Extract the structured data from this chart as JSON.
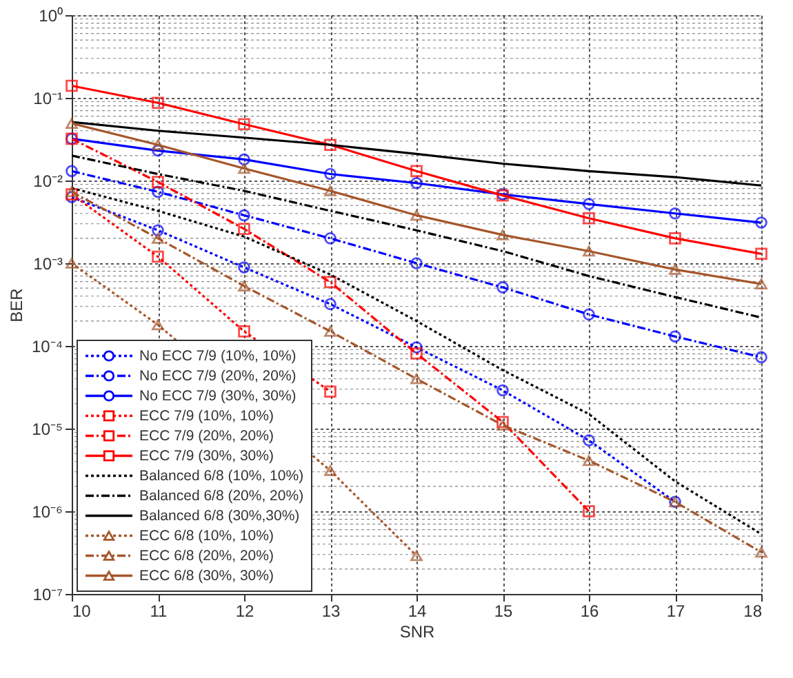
{
  "chart_data": {
    "type": "line",
    "xlabel": "SNR",
    "ylabel": "BER",
    "log": "y",
    "xlim": [
      10,
      18
    ],
    "xticks": [
      10,
      11,
      12,
      13,
      14,
      15,
      16,
      17,
      18
    ],
    "ylim": [
      1e-07,
      1
    ],
    "yticks": [
      {
        "value": 1e-07,
        "label": "10⁻⁷"
      },
      {
        "value": 1e-06,
        "label": "10⁻⁶"
      },
      {
        "value": 1e-05,
        "label": "10⁻⁵"
      },
      {
        "value": 0.0001,
        "label": "10⁻⁴"
      },
      {
        "value": 0.001,
        "label": "10⁻³"
      },
      {
        "value": 0.01,
        "label": "10⁻²"
      },
      {
        "value": 0.1,
        "label": "10⁻¹"
      },
      {
        "value": 1,
        "label": "10⁰"
      }
    ],
    "grid": true,
    "legend": "bottom left",
    "series": [
      {
        "name": "No ECC 7/9 (10%, 10%)",
        "color": "#0000ff",
        "marker": "circle",
        "line_style": "dotted",
        "x": [
          10,
          11,
          12,
          13,
          14,
          15,
          16,
          17
        ],
        "values": [
          0.0063,
          0.0025,
          0.00089,
          0.00032,
          9.6e-05,
          2.9e-05,
          7.2e-06,
          1.3e-06
        ]
      },
      {
        "name": "No ECC 7/9 (20%, 20%)",
        "color": "#0000ff",
        "marker": "circle",
        "line_style": "dashed",
        "x": [
          10,
          11,
          12,
          13,
          14,
          15,
          16,
          17,
          18
        ],
        "values": [
          0.013,
          0.0073,
          0.0038,
          0.002,
          0.001,
          0.00051,
          0.00024,
          0.00013,
          7.3e-05
        ]
      },
      {
        "name": "No ECC 7/9 (30%, 30%)",
        "color": "#0000ff",
        "marker": "circle",
        "line_style": "solid",
        "x": [
          10,
          11,
          12,
          13,
          14,
          15,
          16,
          17,
          18
        ],
        "values": [
          0.032,
          0.023,
          0.018,
          0.012,
          0.0093,
          0.0068,
          0.0052,
          0.004,
          0.0031
        ]
      },
      {
        "name": "ECC 7/9 (10%, 10%)",
        "color": "#ff0000",
        "marker": "square",
        "line_style": "dotted",
        "x": [
          10,
          11,
          12,
          13
        ],
        "values": [
          0.0068,
          0.0012,
          0.00015,
          2.8e-05
        ]
      },
      {
        "name": "ECC 7/9 (20%, 20%)",
        "color": "#ff0000",
        "marker": "square",
        "line_style": "dashed",
        "x": [
          10,
          11,
          12,
          13,
          14,
          15,
          16
        ],
        "values": [
          0.032,
          0.0096,
          0.0026,
          0.00059,
          8.1e-05,
          1.2e-05,
          1e-06
        ]
      },
      {
        "name": "ECC 7/9 (30%, 30%)",
        "color": "#ff0000",
        "marker": "square",
        "line_style": "solid",
        "x": [
          10,
          11,
          12,
          13,
          14,
          15,
          16,
          17,
          18
        ],
        "values": [
          0.14,
          0.087,
          0.048,
          0.027,
          0.013,
          0.0066,
          0.0035,
          0.002,
          0.0013
        ]
      },
      {
        "name": "Balanced 6/8 (10%, 10%)",
        "color": "#000000",
        "marker": "none",
        "line_style": "dotted",
        "x": [
          10,
          11,
          12,
          13,
          14,
          15,
          16,
          17,
          18
        ],
        "values": [
          0.0081,
          0.0043,
          0.0021,
          0.00073,
          0.0002,
          5.1e-05,
          1.5e-05,
          2.3e-06,
          5.3e-07
        ]
      },
      {
        "name": "Balanced 6/8 (20%, 20%)",
        "color": "#000000",
        "marker": "none",
        "line_style": "dashed",
        "x": [
          10,
          11,
          12,
          13,
          14,
          15,
          16,
          17,
          18
        ],
        "values": [
          0.02,
          0.012,
          0.0075,
          0.0043,
          0.0025,
          0.0014,
          0.0007,
          0.00039,
          0.00022
        ]
      },
      {
        "name": "Balanced 6/8 (30%,30%)",
        "color": "#000000",
        "marker": "none",
        "line_style": "solid",
        "x": [
          10,
          11,
          12,
          13,
          14,
          15,
          16,
          17,
          18
        ],
        "values": [
          0.051,
          0.04,
          0.033,
          0.027,
          0.021,
          0.016,
          0.013,
          0.011,
          0.0087
        ]
      },
      {
        "name": "ECC 6/8 (10%, 10%)",
        "color": "#a5562a",
        "marker": "triangle",
        "line_style": "dotted",
        "x": [
          10,
          11,
          13,
          14
        ],
        "values": [
          0.001,
          0.00018,
          3.1e-06,
          2.9e-07
        ]
      },
      {
        "name": "ECC 6/8 (20%, 20%)",
        "color": "#a5562a",
        "marker": "triangle",
        "line_style": "dashed",
        "x": [
          10,
          11,
          12,
          13,
          14,
          15,
          16,
          17,
          18
        ],
        "values": [
          0.0073,
          0.002,
          0.00053,
          0.00015,
          4e-05,
          1.1e-05,
          4.1e-06,
          1.3e-06,
          3.2e-07
        ]
      },
      {
        "name": "ECC 6/8 (30%, 30%)",
        "color": "#a5562a",
        "marker": "triangle",
        "line_style": "solid",
        "x": [
          10,
          11,
          12,
          13,
          14,
          15,
          16,
          17,
          18
        ],
        "values": [
          0.049,
          0.027,
          0.014,
          0.0075,
          0.0038,
          0.0022,
          0.0014,
          0.00084,
          0.00056
        ]
      }
    ]
  }
}
